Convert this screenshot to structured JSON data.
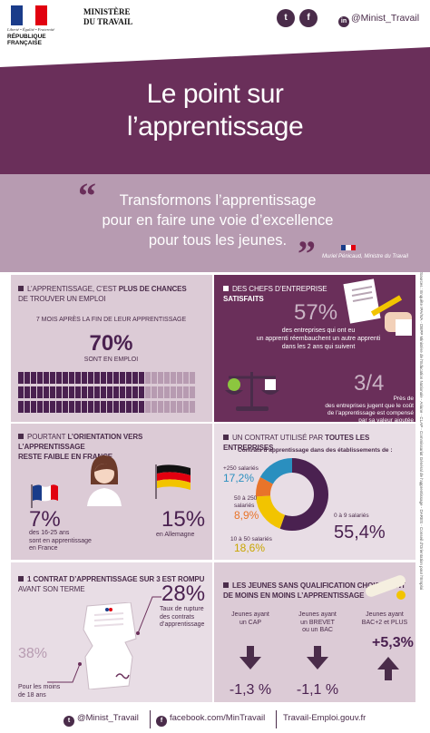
{
  "header": {
    "logo_line1": "Liberté • Égalité • Fraternité",
    "logo_line2": "RÉPUBLIQUE FRANÇAISE",
    "ministry_line1": "MINISTÈRE",
    "ministry_line2": "DU TRAVAIL",
    "handle": "@Minist_Travail",
    "social_icons": [
      "twitter-icon",
      "facebook-icon",
      "linkedin-icon"
    ]
  },
  "title": {
    "line1": "Le point sur",
    "line2": "l’apprentissage"
  },
  "quote": {
    "text_line1": "Transformons l’apprentissage",
    "text_line2": "pour en faire une voie d’excellence",
    "text_line3": "pour tous les jeunes.",
    "author": "Muriel Pénicaud, Ministre du Travail"
  },
  "panel1": {
    "heading_part1": "L’apprentissage, c’est ",
    "heading_bold": "plus de chances",
    "heading_line2": "de trouver un emploi",
    "subheading": "7 mois après la fin de leur apprentissage",
    "value": "70%",
    "value_label": "sont en emploi",
    "employed_fraction": 0.7
  },
  "panel2": {
    "heading_line1": "Des chefs d’entreprise",
    "heading_line2": "satisfaits",
    "stat1_value": "57%",
    "stat1_l1": "des entreprises qui ont eu",
    "stat1_l2": "un apprenti réembauchent un autre apprenti",
    "stat1_l3": "dans les 2 ans qui suivent",
    "stat2_value": "3/4",
    "stat2_l1": "Près de",
    "stat2_l2": "des entreprises jugent que le coût",
    "stat2_l3": "de l’apprentissage est compensé",
    "stat2_l4": "par sa valeur ajoutée"
  },
  "panel3": {
    "heading_part1": "Pourtant ",
    "heading_bold": "l’orientation vers l’apprentissage",
    "heading_line2": "reste faible en France",
    "france_value": "7%",
    "france_l1": "des 16-25 ans",
    "france_l2": "sont en apprentissage",
    "france_l3": "en France",
    "germany_value": "15%",
    "germany_label": "en Allemagne"
  },
  "panel4": {
    "heading_part1": "Un contrat utilisé par ",
    "heading_bold": "toutes les entreprises",
    "subheading": "Contrats d’apprentissage dans des établissements de :",
    "seg1_label": "+250 salariés",
    "seg1_value": "17,2%",
    "seg2_label_l1": "50 à 250",
    "seg2_label_l2": "salariés",
    "seg2_value": "8,9%",
    "seg3_label": "10 à 50 salariés",
    "seg3_value": "18,6%",
    "seg4_label": "0 à 9 salariés",
    "seg4_value": "55,4%"
  },
  "chart_data": {
    "type": "pie",
    "categories": [
      "0 à 9 salariés",
      "10 à 50 salariés",
      "50 à 250 salariés",
      "+250 salariés"
    ],
    "values": [
      55.4,
      18.6,
      8.9,
      17.2
    ],
    "colors": [
      "#4a2150",
      "#f2c400",
      "#e8742a",
      "#2a8fbf"
    ]
  },
  "panel5": {
    "heading_part1": "1 contrat d’apprentissage sur 3 est rompu",
    "heading_line2": "avant son terme",
    "stat1_value": "28%",
    "stat1_l1": "Taux de rupture",
    "stat1_l2": "des contrats",
    "stat1_l3": "d’apprentissage",
    "stat2_value": "38%",
    "stat2_l1": "Pour les moins",
    "stat2_l2": "de 18 ans"
  },
  "panel6": {
    "heading_part1": "Les jeunes sans qualification choisissent",
    "heading_line2": "de moins en moins l’apprentissage",
    "col1_l1": "Jeunes ayant",
    "col1_l2": "un CAP",
    "col1_value": "-1,3 %",
    "col2_l1": "Jeunes ayant",
    "col2_l2": "un BREVET",
    "col2_l3": "ou un BAC",
    "col2_value": "-1,1 %",
    "col3_l1": "Jeunes ayant",
    "col3_l2": "BAC+2 et PLUS",
    "col3_value": "+5,3%"
  },
  "footer": {
    "handle": "@Minist_Travail",
    "facebook": "facebook.com/MinTravail",
    "site": "Travail-Emploi.gouv.fr"
  },
  "sources": "Sources : Enquête IPA/IVA - DEPP Ministère de l’Education Nationale - Ariane - CLAP - Commissariat Général de l’apprentissage - DARES - Conseil d’Orientation pour l’Emploi"
}
